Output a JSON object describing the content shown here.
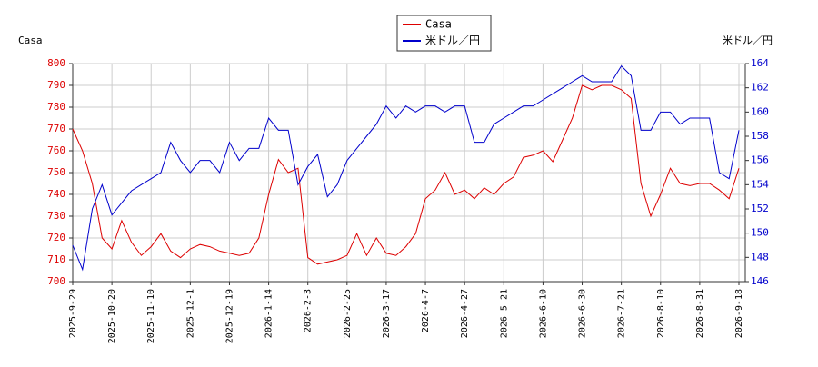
{
  "chart_data": {
    "type": "line",
    "y_label": "Casa",
    "y2_label": "米ドル／円",
    "categories": [
      "2025-9-29",
      null,
      null,
      null,
      "2025-10-20",
      null,
      null,
      null,
      "2025-11-10",
      null,
      null,
      null,
      "2025-12-1",
      null,
      null,
      null,
      "2025-12-19",
      null,
      null,
      null,
      "2026-1-14",
      null,
      null,
      null,
      "2026-2-3",
      null,
      null,
      null,
      "2026-2-25",
      null,
      null,
      null,
      "2026-3-17",
      null,
      null,
      null,
      "2026-4-7",
      null,
      null,
      null,
      "2026-4-27",
      null,
      null,
      null,
      "2026-5-21",
      null,
      null,
      null,
      "2026-6-10",
      null,
      null,
      null,
      "2026-6-30",
      null,
      null,
      null,
      "2026-7-21",
      null,
      null,
      null,
      "2026-8-10",
      null,
      null,
      null,
      "2026-8-31",
      null,
      null,
      null,
      "2026-9-18"
    ],
    "series": [
      {
        "name": "Casa",
        "color": "#dd0000",
        "axis": "y",
        "values": [
          770,
          760,
          745,
          720,
          715,
          728,
          718,
          712,
          716,
          722,
          714,
          711,
          715,
          717,
          716,
          714,
          713,
          712,
          713,
          720,
          740,
          756,
          750,
          752,
          711,
          708,
          709,
          710,
          712,
          722,
          712,
          720,
          713,
          712,
          716,
          722,
          738,
          742,
          750,
          740,
          742,
          738,
          743,
          740,
          745,
          748,
          757,
          758,
          760,
          755,
          765,
          775,
          790,
          788,
          790,
          790,
          788,
          784,
          745,
          730,
          740,
          752,
          745,
          744,
          745,
          745,
          742,
          738,
          752
        ]
      },
      {
        "name": "米ドル／円",
        "color": "#0000cc",
        "axis": "y2",
        "values": [
          149,
          147,
          152,
          154,
          151.5,
          152.5,
          153.5,
          154,
          154.5,
          155,
          157.5,
          156,
          155,
          156,
          156,
          155,
          157.5,
          156,
          157,
          157,
          159.5,
          158.5,
          158.5,
          154,
          155.5,
          156.5,
          153,
          154,
          156,
          157,
          158,
          159,
          160.5,
          159.5,
          160.5,
          160,
          160.5,
          160.5,
          160,
          160.5,
          160.5,
          157.5,
          157.5,
          159,
          159.5,
          160,
          160.5,
          160.5,
          161,
          161.5,
          162,
          162.5,
          163,
          162.5,
          162.5,
          162.5,
          163.8,
          163,
          158.5,
          158.5,
          160,
          160,
          159,
          159.5,
          159.5,
          159.5,
          155,
          154.5,
          158.5
        ]
      }
    ],
    "ylim": [
      700,
      800
    ],
    "yticks": [
      700,
      710,
      720,
      730,
      740,
      750,
      760,
      770,
      780,
      790,
      800
    ],
    "y2lim": [
      146,
      164
    ],
    "y2ticks": [
      146,
      148,
      150,
      152,
      154,
      156,
      158,
      160,
      162,
      164
    ],
    "grid": true
  }
}
